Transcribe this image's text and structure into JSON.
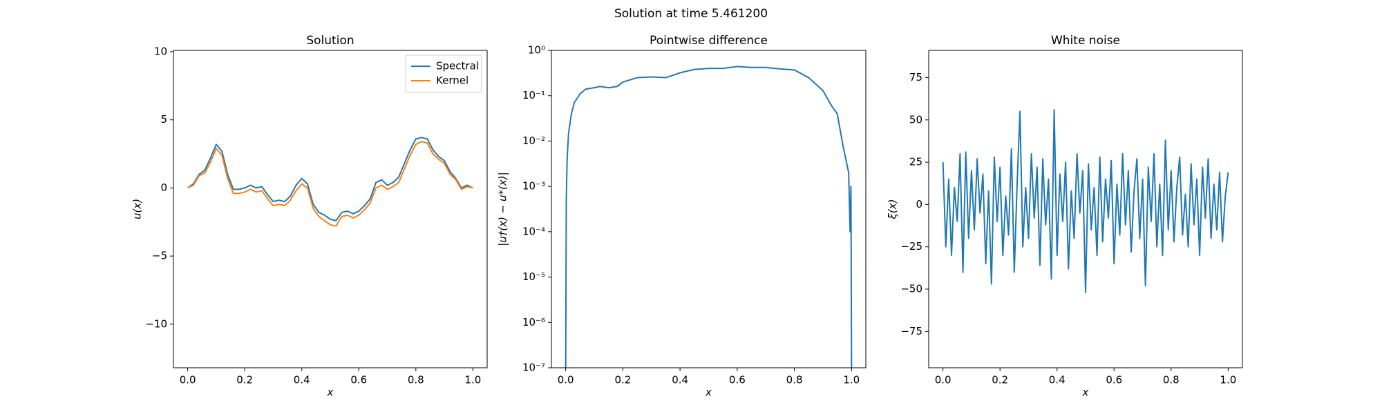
{
  "title": "Solution at time 5.461200",
  "chart_data": [
    {
      "type": "line",
      "title": "Solution",
      "xlabel": "x",
      "ylabel": "u(x)",
      "legend": "upper right",
      "x": [
        0,
        0.02,
        0.04,
        0.06,
        0.08,
        0.1,
        0.12,
        0.14,
        0.16,
        0.18,
        0.2,
        0.22,
        0.24,
        0.26,
        0.28,
        0.3,
        0.32,
        0.34,
        0.36,
        0.38,
        0.4,
        0.42,
        0.44,
        0.46,
        0.48,
        0.5,
        0.52,
        0.54,
        0.56,
        0.58,
        0.6,
        0.62,
        0.64,
        0.66,
        0.68,
        0.7,
        0.72,
        0.74,
        0.76,
        0.78,
        0.8,
        0.82,
        0.84,
        0.86,
        0.88,
        0.9,
        0.92,
        0.94,
        0.96,
        0.98,
        1
      ],
      "series": [
        {
          "name": "Spectral",
          "color": "#1f77b4",
          "values": [
            0,
            0.3,
            1.0,
            1.3,
            2.2,
            3.2,
            2.7,
            1.0,
            -0.1,
            -0.1,
            0.0,
            0.2,
            0.0,
            0.1,
            -0.5,
            -1.0,
            -0.9,
            -1.0,
            -0.6,
            0.2,
            0.7,
            0.3,
            -1.2,
            -1.8,
            -2.0,
            -2.3,
            -2.4,
            -1.8,
            -1.7,
            -1.9,
            -1.7,
            -1.3,
            -0.8,
            0.4,
            0.6,
            0.2,
            0.4,
            0.8,
            1.8,
            2.8,
            3.6,
            3.7,
            3.6,
            2.8,
            2.3,
            2.0,
            1.2,
            0.7,
            0.0,
            0.2,
            0.0
          ]
        },
        {
          "name": "Kernel",
          "color": "#ff7f0e",
          "values": [
            0,
            0.2,
            0.9,
            1.1,
            1.9,
            2.9,
            2.4,
            0.7,
            -0.4,
            -0.4,
            -0.3,
            -0.1,
            -0.3,
            -0.2,
            -0.8,
            -1.3,
            -1.2,
            -1.3,
            -0.9,
            -0.2,
            0.3,
            0.0,
            -1.5,
            -2.1,
            -2.4,
            -2.7,
            -2.8,
            -2.1,
            -2.0,
            -2.2,
            -2.0,
            -1.6,
            -1.1,
            0.0,
            0.2,
            -0.1,
            0.1,
            0.4,
            1.4,
            2.4,
            3.2,
            3.4,
            3.3,
            2.5,
            2.1,
            1.8,
            1.0,
            0.6,
            -0.1,
            0.1,
            0.0
          ]
        }
      ],
      "xlim": [
        -0.05,
        1.05
      ],
      "ylim": [
        -13.2,
        10.1
      ],
      "xticks": [
        {
          "value": 0,
          "label": "0.0"
        },
        0.2,
        0.4,
        0.6,
        0.8,
        {
          "value": 1,
          "label": "1.0"
        }
      ],
      "yticks": [
        {
          "value": -10,
          "label": "−10"
        },
        {
          "value": -5,
          "label": "−5"
        },
        0,
        5,
        10
      ]
    },
    {
      "type": "line",
      "title": "Pointwise difference",
      "xlabel": "x",
      "ylabel": "|u†(x) − u*(x)|",
      "yscale": "log",
      "x": [
        0,
        0.002,
        0.005,
        0.01,
        0.02,
        0.03,
        0.05,
        0.07,
        0.1,
        0.12,
        0.15,
        0.18,
        0.2,
        0.25,
        0.3,
        0.35,
        0.4,
        0.45,
        0.5,
        0.55,
        0.6,
        0.65,
        0.7,
        0.75,
        0.8,
        0.85,
        0.9,
        0.93,
        0.95,
        0.97,
        0.98,
        0.99,
        0.995,
        0.998,
        1
      ],
      "series": [
        {
          "color": "#1f77b4",
          "values": [
            1e-07,
            0.0005,
            0.004,
            0.015,
            0.04,
            0.07,
            0.11,
            0.14,
            0.15,
            0.16,
            0.15,
            0.16,
            0.2,
            0.25,
            0.26,
            0.25,
            0.32,
            0.38,
            0.4,
            0.4,
            0.44,
            0.42,
            0.42,
            0.39,
            0.37,
            0.25,
            0.13,
            0.06,
            0.04,
            0.008,
            0.004,
            0.002,
            0.0001,
            0.001,
            1e-07
          ]
        }
      ],
      "xlim": [
        -0.05,
        1.05
      ],
      "ylim": [
        1e-07,
        1
      ],
      "xticks": [
        {
          "value": 0,
          "label": "0.0"
        },
        0.2,
        0.4,
        0.6,
        0.8,
        {
          "value": 1,
          "label": "1.0"
        }
      ],
      "yticks": [
        {
          "value": 1e-07,
          "label": "10⁻⁷"
        },
        {
          "value": 1e-06,
          "label": "10⁻⁶"
        },
        {
          "value": 1e-05,
          "label": "10⁻⁵"
        },
        {
          "value": 0.0001,
          "label": "10⁻⁴"
        },
        {
          "value": 0.001,
          "label": "10⁻³"
        },
        {
          "value": 0.01,
          "label": "10⁻²"
        },
        {
          "value": 0.1,
          "label": "10⁻¹"
        },
        {
          "value": 1,
          "label": "10⁰"
        }
      ]
    },
    {
      "type": "line",
      "title": "White noise",
      "xlabel": "x",
      "ylabel": "ξ(x)",
      "x": [
        0,
        0.01,
        0.02,
        0.03,
        0.04,
        0.05,
        0.06,
        0.07,
        0.08,
        0.09,
        0.1,
        0.11,
        0.12,
        0.13,
        0.14,
        0.15,
        0.16,
        0.17,
        0.18,
        0.19,
        0.2,
        0.21,
        0.22,
        0.23,
        0.24,
        0.25,
        0.26,
        0.27,
        0.28,
        0.29,
        0.3,
        0.31,
        0.32,
        0.33,
        0.34,
        0.35,
        0.36,
        0.37,
        0.38,
        0.39,
        0.4,
        0.41,
        0.42,
        0.43,
        0.44,
        0.45,
        0.46,
        0.47,
        0.48,
        0.49,
        0.5,
        0.51,
        0.52,
        0.53,
        0.54,
        0.55,
        0.56,
        0.57,
        0.58,
        0.59,
        0.6,
        0.61,
        0.62,
        0.63,
        0.64,
        0.65,
        0.66,
        0.67,
        0.68,
        0.69,
        0.7,
        0.71,
        0.72,
        0.73,
        0.74,
        0.75,
        0.76,
        0.77,
        0.78,
        0.79,
        0.8,
        0.81,
        0.82,
        0.83,
        0.84,
        0.85,
        0.86,
        0.87,
        0.88,
        0.89,
        0.9,
        0.91,
        0.92,
        0.93,
        0.94,
        0.95,
        0.96,
        0.97,
        0.98,
        0.99,
        1
      ],
      "series": [
        {
          "color": "#1f77b4",
          "values": [
            25,
            -25,
            15,
            -30,
            10,
            -10,
            30,
            -40,
            31,
            -20,
            20,
            -15,
            27,
            -5,
            18,
            -35,
            8,
            -47,
            28,
            -10,
            22,
            -30,
            5,
            -18,
            33,
            -40,
            12,
            55,
            -25,
            10,
            -20,
            30,
            -8,
            22,
            -36,
            27,
            -12,
            15,
            -44,
            56,
            -30,
            18,
            -10,
            25,
            -38,
            8,
            -20,
            30,
            -5,
            20,
            -52,
            24,
            -15,
            10,
            -30,
            28,
            -22,
            15,
            -8,
            26,
            -35,
            12,
            -18,
            30,
            -12,
            20,
            -28,
            8,
            27,
            -20,
            15,
            -48,
            22,
            -10,
            30,
            -25,
            12,
            -30,
            38,
            -15,
            20,
            -22,
            10,
            28,
            -18,
            6,
            -25,
            24,
            -12,
            15,
            -30,
            22,
            -8,
            27,
            -20,
            12,
            -15,
            19,
            -22,
            5,
            19
          ]
        }
      ],
      "xlim": [
        -0.05,
        1.05
      ],
      "ylim": [
        -96.5,
        91.1
      ],
      "xticks": [
        {
          "value": 0,
          "label": "0.0"
        },
        0.2,
        0.4,
        0.6,
        0.8,
        {
          "value": 1,
          "label": "1.0"
        }
      ],
      "yticks": [
        {
          "value": -75,
          "label": "−75"
        },
        {
          "value": -50,
          "label": "−50"
        },
        {
          "value": -25,
          "label": "−25"
        },
        0,
        25,
        50,
        75
      ]
    }
  ]
}
